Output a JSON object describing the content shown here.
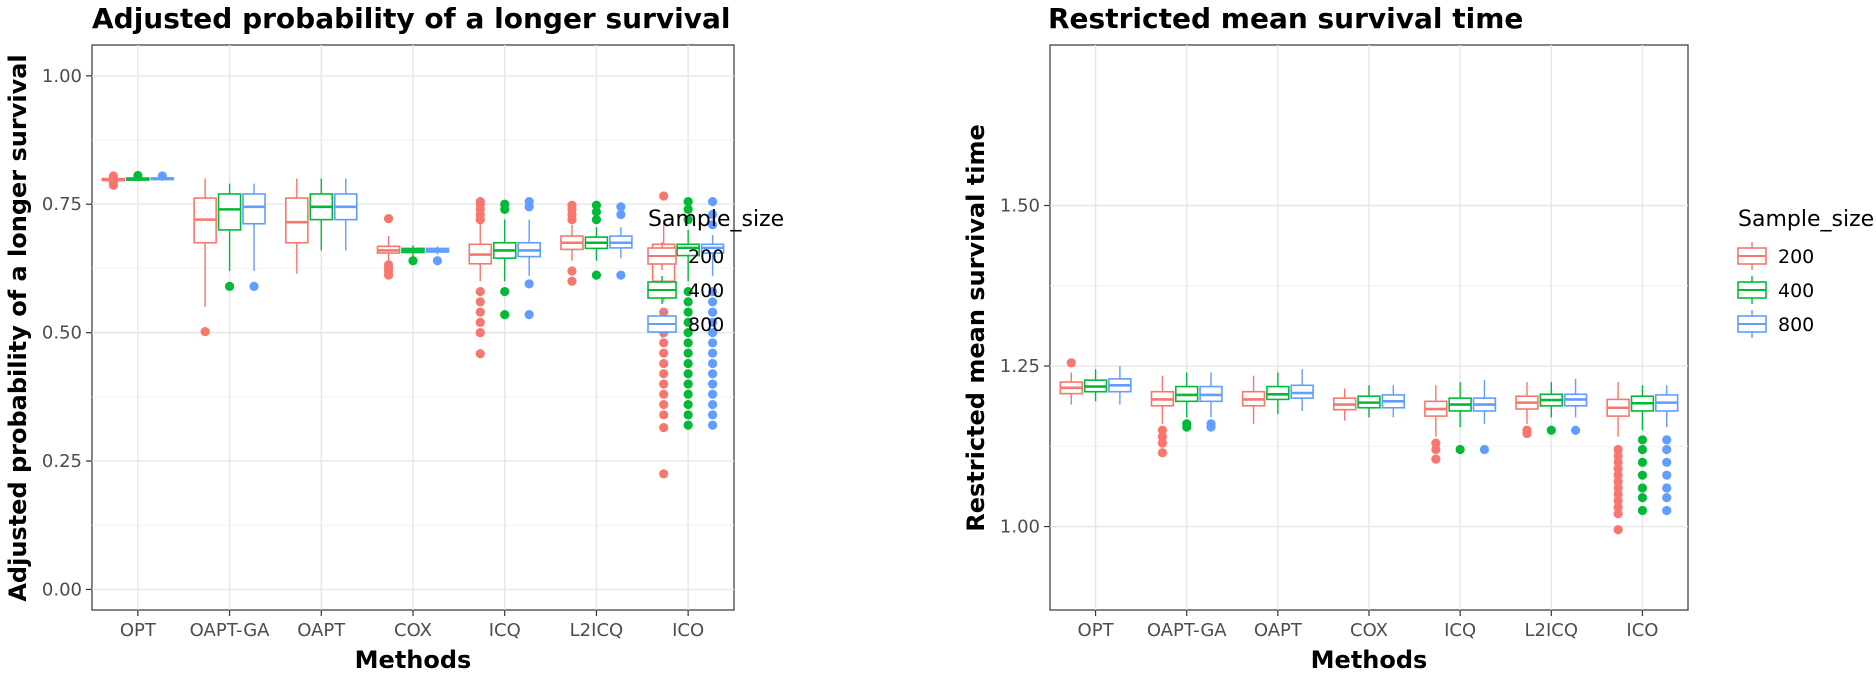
{
  "chart_data": [
    {
      "type": "box",
      "title": "Adjusted probability of a longer survival",
      "xlabel": "Methods",
      "ylabel": "Adjusted probability of a longer survival",
      "ylim": [
        -0.04,
        1.06
      ],
      "yticks": [
        0.0,
        0.25,
        0.5,
        0.75,
        1.0
      ],
      "ytick_labels": [
        "0.00",
        "0.25",
        "0.50",
        "0.75",
        "1.00"
      ],
      "categories": [
        "OPT",
        "OAPT-GA",
        "OAPT",
        "COX",
        "ICQ",
        "L2ICQ",
        "ICO"
      ],
      "grid": true,
      "legend": {
        "title": "Sample_size",
        "position": "right"
      },
      "series": [
        {
          "name": "200",
          "color": "#F8766D",
          "boxes": [
            {
              "min": 0.79,
              "q1": 0.796,
              "median": 0.798,
              "q3": 0.8,
              "max": 0.803,
              "outliers": [
                0.787,
                0.792,
                0.805
              ]
            },
            {
              "min": 0.55,
              "q1": 0.675,
              "median": 0.72,
              "q3": 0.762,
              "max": 0.8,
              "outliers": [
                0.502
              ]
            },
            {
              "min": 0.615,
              "q1": 0.675,
              "median": 0.715,
              "q3": 0.762,
              "max": 0.8,
              "outliers": []
            },
            {
              "min": 0.635,
              "q1": 0.655,
              "median": 0.66,
              "q3": 0.668,
              "max": 0.688,
              "outliers": [
                0.722,
                0.612,
                0.62,
                0.627,
                0.632
              ]
            },
            {
              "min": 0.6,
              "q1": 0.634,
              "median": 0.652,
              "q3": 0.672,
              "max": 0.715,
              "outliers": [
                0.72,
                0.73,
                0.74,
                0.75,
                0.755,
                0.58,
                0.56,
                0.54,
                0.52,
                0.5,
                0.459
              ]
            },
            {
              "min": 0.64,
              "q1": 0.662,
              "median": 0.675,
              "q3": 0.688,
              "max": 0.71,
              "outliers": [
                0.72,
                0.73,
                0.74,
                0.748,
                0.6,
                0.62
              ]
            },
            {
              "min": 0.56,
              "q1": 0.6,
              "median": 0.66,
              "q3": 0.672,
              "max": 0.72,
              "outliers": [
                0.766,
                0.54,
                0.52,
                0.5,
                0.48,
                0.46,
                0.44,
                0.42,
                0.4,
                0.38,
                0.36,
                0.34,
                0.315,
                0.225
              ]
            }
          ]
        },
        {
          "name": "400",
          "color": "#00BA38",
          "boxes": [
            {
              "min": 0.795,
              "q1": 0.797,
              "median": 0.799,
              "q3": 0.801,
              "max": 0.804,
              "outliers": [
                0.806
              ]
            },
            {
              "min": 0.62,
              "q1": 0.7,
              "median": 0.74,
              "q3": 0.77,
              "max": 0.79,
              "outliers": [
                0.59
              ]
            },
            {
              "min": 0.66,
              "q1": 0.72,
              "median": 0.745,
              "q3": 0.77,
              "max": 0.8,
              "outliers": []
            },
            {
              "min": 0.648,
              "q1": 0.656,
              "median": 0.66,
              "q3": 0.664,
              "max": 0.67,
              "outliers": [
                0.64
              ]
            },
            {
              "min": 0.6,
              "q1": 0.645,
              "median": 0.66,
              "q3": 0.675,
              "max": 0.72,
              "outliers": [
                0.74,
                0.75,
                0.535,
                0.58
              ]
            },
            {
              "min": 0.64,
              "q1": 0.664,
              "median": 0.675,
              "q3": 0.686,
              "max": 0.705,
              "outliers": [
                0.72,
                0.735,
                0.748,
                0.612
              ]
            },
            {
              "min": 0.6,
              "q1": 0.65,
              "median": 0.665,
              "q3": 0.672,
              "max": 0.7,
              "outliers": [
                0.755,
                0.74,
                0.72,
                0.58,
                0.56,
                0.54,
                0.52,
                0.5,
                0.48,
                0.46,
                0.44,
                0.42,
                0.4,
                0.38,
                0.36,
                0.34,
                0.32
              ]
            }
          ]
        },
        {
          "name": "800",
          "color": "#619CFF",
          "boxes": [
            {
              "min": 0.796,
              "q1": 0.798,
              "median": 0.8,
              "q3": 0.801,
              "max": 0.803,
              "outliers": [
                0.805
              ]
            },
            {
              "min": 0.62,
              "q1": 0.712,
              "median": 0.745,
              "q3": 0.77,
              "max": 0.79,
              "outliers": [
                0.59
              ]
            },
            {
              "min": 0.66,
              "q1": 0.72,
              "median": 0.745,
              "q3": 0.77,
              "max": 0.8,
              "outliers": []
            },
            {
              "min": 0.652,
              "q1": 0.657,
              "median": 0.66,
              "q3": 0.664,
              "max": 0.668,
              "outliers": [
                0.64
              ]
            },
            {
              "min": 0.61,
              "q1": 0.648,
              "median": 0.66,
              "q3": 0.675,
              "max": 0.72,
              "outliers": [
                0.745,
                0.755,
                0.535,
                0.595
              ]
            },
            {
              "min": 0.645,
              "q1": 0.665,
              "median": 0.675,
              "q3": 0.688,
              "max": 0.705,
              "outliers": [
                0.73,
                0.745,
                0.612
              ]
            },
            {
              "min": 0.61,
              "q1": 0.655,
              "median": 0.665,
              "q3": 0.672,
              "max": 0.69,
              "outliers": [
                0.755,
                0.73,
                0.71,
                0.58,
                0.56,
                0.54,
                0.52,
                0.5,
                0.48,
                0.46,
                0.44,
                0.42,
                0.4,
                0.38,
                0.36,
                0.34,
                0.32
              ]
            }
          ]
        }
      ]
    },
    {
      "type": "box",
      "title": "Restricted mean survival time",
      "xlabel": "Methods",
      "ylabel": "Restricted mean survival time",
      "ylim": [
        0.87,
        1.75
      ],
      "yticks": [
        1.0,
        1.25,
        1.5
      ],
      "ytick_labels": [
        "1.00",
        "1.25",
        "1.50"
      ],
      "categories": [
        "OPT",
        "OAPT-GA",
        "OAPT",
        "COX",
        "ICQ",
        "L2ICQ",
        "ICO"
      ],
      "grid": true,
      "legend": {
        "title": "Sample_size",
        "position": "right"
      },
      "series": [
        {
          "name": "200",
          "color": "#F8766D",
          "boxes": [
            {
              "min": 1.19,
              "q1": 1.207,
              "median": 1.216,
              "q3": 1.225,
              "max": 1.24,
              "outliers": [
                1.255
              ]
            },
            {
              "min": 1.16,
              "q1": 1.188,
              "median": 1.198,
              "q3": 1.21,
              "max": 1.235,
              "outliers": [
                1.15,
                1.14,
                1.13,
                1.115
              ]
            },
            {
              "min": 1.16,
              "q1": 1.188,
              "median": 1.198,
              "q3": 1.21,
              "max": 1.235,
              "outliers": []
            },
            {
              "min": 1.165,
              "q1": 1.182,
              "median": 1.19,
              "q3": 1.2,
              "max": 1.215,
              "outliers": []
            },
            {
              "min": 1.14,
              "q1": 1.172,
              "median": 1.183,
              "q3": 1.195,
              "max": 1.22,
              "outliers": [
                1.13,
                1.12,
                1.105
              ]
            },
            {
              "min": 1.16,
              "q1": 1.183,
              "median": 1.193,
              "q3": 1.203,
              "max": 1.225,
              "outliers": [
                1.15,
                1.145
              ]
            },
            {
              "min": 1.14,
              "q1": 1.172,
              "median": 1.185,
              "q3": 1.198,
              "max": 1.225,
              "outliers": [
                1.12,
                1.11,
                1.1,
                1.09,
                1.08,
                1.07,
                1.06,
                1.05,
                1.04,
                1.03,
                1.02,
                0.995
              ]
            }
          ]
        },
        {
          "name": "400",
          "color": "#00BA38",
          "boxes": [
            {
              "min": 1.195,
              "q1": 1.21,
              "median": 1.218,
              "q3": 1.228,
              "max": 1.245,
              "outliers": []
            },
            {
              "min": 1.17,
              "q1": 1.195,
              "median": 1.205,
              "q3": 1.218,
              "max": 1.24,
              "outliers": [
                1.16,
                1.155
              ]
            },
            {
              "min": 1.175,
              "q1": 1.198,
              "median": 1.206,
              "q3": 1.218,
              "max": 1.24,
              "outliers": []
            },
            {
              "min": 1.17,
              "q1": 1.185,
              "median": 1.193,
              "q3": 1.203,
              "max": 1.22,
              "outliers": []
            },
            {
              "min": 1.155,
              "q1": 1.18,
              "median": 1.19,
              "q3": 1.2,
              "max": 1.225,
              "outliers": [
                1.12
              ]
            },
            {
              "min": 1.17,
              "q1": 1.188,
              "median": 1.197,
              "q3": 1.206,
              "max": 1.225,
              "outliers": [
                1.15
              ]
            },
            {
              "min": 1.15,
              "q1": 1.18,
              "median": 1.192,
              "q3": 1.203,
              "max": 1.22,
              "outliers": [
                1.135,
                1.12,
                1.1,
                1.08,
                1.06,
                1.045,
                1.025
              ]
            }
          ]
        },
        {
          "name": "800",
          "color": "#619CFF",
          "boxes": [
            {
              "min": 1.19,
              "q1": 1.21,
              "median": 1.22,
              "q3": 1.23,
              "max": 1.25,
              "outliers": []
            },
            {
              "min": 1.17,
              "q1": 1.195,
              "median": 1.205,
              "q3": 1.218,
              "max": 1.24,
              "outliers": [
                1.16,
                1.155
              ]
            },
            {
              "min": 1.18,
              "q1": 1.2,
              "median": 1.208,
              "q3": 1.22,
              "max": 1.245,
              "outliers": []
            },
            {
              "min": 1.17,
              "q1": 1.185,
              "median": 1.195,
              "q3": 1.205,
              "max": 1.22,
              "outliers": []
            },
            {
              "min": 1.16,
              "q1": 1.18,
              "median": 1.19,
              "q3": 1.2,
              "max": 1.228,
              "outliers": [
                1.12
              ]
            },
            {
              "min": 1.17,
              "q1": 1.188,
              "median": 1.198,
              "q3": 1.206,
              "max": 1.23,
              "outliers": [
                1.15
              ]
            },
            {
              "min": 1.155,
              "q1": 1.18,
              "median": 1.193,
              "q3": 1.205,
              "max": 1.22,
              "outliers": [
                1.135,
                1.12,
                1.1,
                1.08,
                1.06,
                1.045,
                1.025
              ]
            }
          ]
        }
      ]
    }
  ]
}
